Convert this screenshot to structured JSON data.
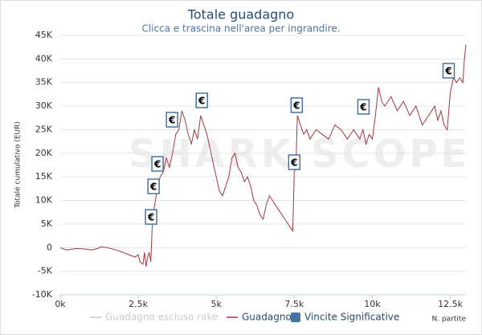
{
  "chart_data": {
    "type": "line",
    "title": "Totale guadagno",
    "subtitle": "Clicca e trascina nell'area per ingrandire.",
    "watermark": "SHARK SCOPE",
    "ylabel": "Totale cumulativo (EUR)",
    "xlabel": "N. partite",
    "xlim": [
      0,
      13000
    ],
    "ylim": [
      -10000,
      45000
    ],
    "xticks": [
      {
        "value": 0,
        "label": "0k"
      },
      {
        "value": 2500,
        "label": "2.5k"
      },
      {
        "value": 5000,
        "label": "5k"
      },
      {
        "value": 7500,
        "label": "7.5k"
      },
      {
        "value": 10000,
        "label": "10k"
      },
      {
        "value": 12500,
        "label": "12.5k"
      }
    ],
    "yticks": [
      {
        "value": -10000,
        "label": "-10K"
      },
      {
        "value": -5000,
        "label": "-5K"
      },
      0,
      {
        "value": 5000,
        "label": "5K"
      },
      {
        "value": 10000,
        "label": "10K"
      },
      {
        "value": 15000,
        "label": "15K"
      },
      {
        "value": 20000,
        "label": "20K"
      },
      {
        "value": 25000,
        "label": "25K"
      },
      {
        "value": 30000,
        "label": "30K"
      },
      {
        "value": 35000,
        "label": "35K"
      },
      {
        "value": 40000,
        "label": "40K"
      },
      {
        "value": 45000,
        "label": "45K"
      }
    ],
    "grid": true,
    "series": [
      {
        "name": "Guadagno escluso rake",
        "color": "#cccccc",
        "visible": false,
        "x": [],
        "values": []
      },
      {
        "name": "Guadagno",
        "color": "#a0393f",
        "visible": true,
        "x": [
          0,
          200,
          500,
          800,
          1000,
          1200,
          1300,
          1500,
          1800,
          2000,
          2200,
          2400,
          2500,
          2550,
          2650,
          2700,
          2750,
          2800,
          2850,
          2900,
          2950,
          3000,
          3100,
          3200,
          3300,
          3400,
          3500,
          3600,
          3700,
          3800,
          3900,
          4000,
          4100,
          4200,
          4300,
          4400,
          4500,
          4600,
          4700,
          4800,
          4900,
          5000,
          5100,
          5200,
          5300,
          5400,
          5500,
          5600,
          5700,
          5800,
          5900,
          6000,
          6100,
          6200,
          6300,
          6400,
          6500,
          6600,
          6700,
          6800,
          6900,
          7000,
          7200,
          7400,
          7450,
          7500,
          7550,
          7600,
          7700,
          7800,
          7900,
          8000,
          8200,
          8400,
          8600,
          8800,
          9000,
          9200,
          9400,
          9500,
          9600,
          9700,
          9800,
          9900,
          10000,
          10100,
          10200,
          10300,
          10400,
          10600,
          10800,
          11000,
          11200,
          11400,
          11600,
          11800,
          12000,
          12100,
          12200,
          12300,
          12400,
          12500,
          12600,
          12700,
          12800,
          12900,
          12950,
          13000
        ],
        "values": [
          0,
          -500,
          -200,
          -300,
          -500,
          -200,
          200,
          0,
          -500,
          -1000,
          -1500,
          -2000,
          -1500,
          -3000,
          -3500,
          -1000,
          -4000,
          -2000,
          -1000,
          -3000,
          5000,
          8000,
          12000,
          15000,
          16000,
          19000,
          17000,
          20000,
          24000,
          25000,
          29000,
          27000,
          24000,
          22000,
          25000,
          23000,
          28000,
          26000,
          24000,
          21000,
          18000,
          15000,
          12000,
          11000,
          13000,
          15000,
          19000,
          20000,
          17000,
          16000,
          14000,
          15000,
          13000,
          10000,
          9000,
          7000,
          6000,
          9000,
          11000,
          10000,
          9000,
          8000,
          6000,
          4000,
          3500,
          16000,
          17000,
          28000,
          26000,
          24000,
          25000,
          23000,
          25000,
          24000,
          23000,
          26000,
          25000,
          23000,
          25000,
          24000,
          23000,
          25000,
          22000,
          24000,
          23000,
          28000,
          34000,
          31000,
          30000,
          32000,
          29000,
          31000,
          28000,
          30000,
          26000,
          28000,
          30000,
          27000,
          29000,
          26000,
          25000,
          33000,
          36000,
          35000,
          36000,
          35000,
          40000,
          43000
        ]
      },
      {
        "name": "Vincite Significative",
        "color": "#4572a7",
        "visible": true,
        "marker_symbol": "€",
        "x": [
          2912,
          2990,
          3118,
          3582,
          4536,
          7577,
          7499,
          9716,
          12447
        ],
        "values": [
          6350,
          12820,
          17590,
          26950,
          31040,
          30020,
          17930,
          29680,
          37340
        ]
      }
    ]
  }
}
